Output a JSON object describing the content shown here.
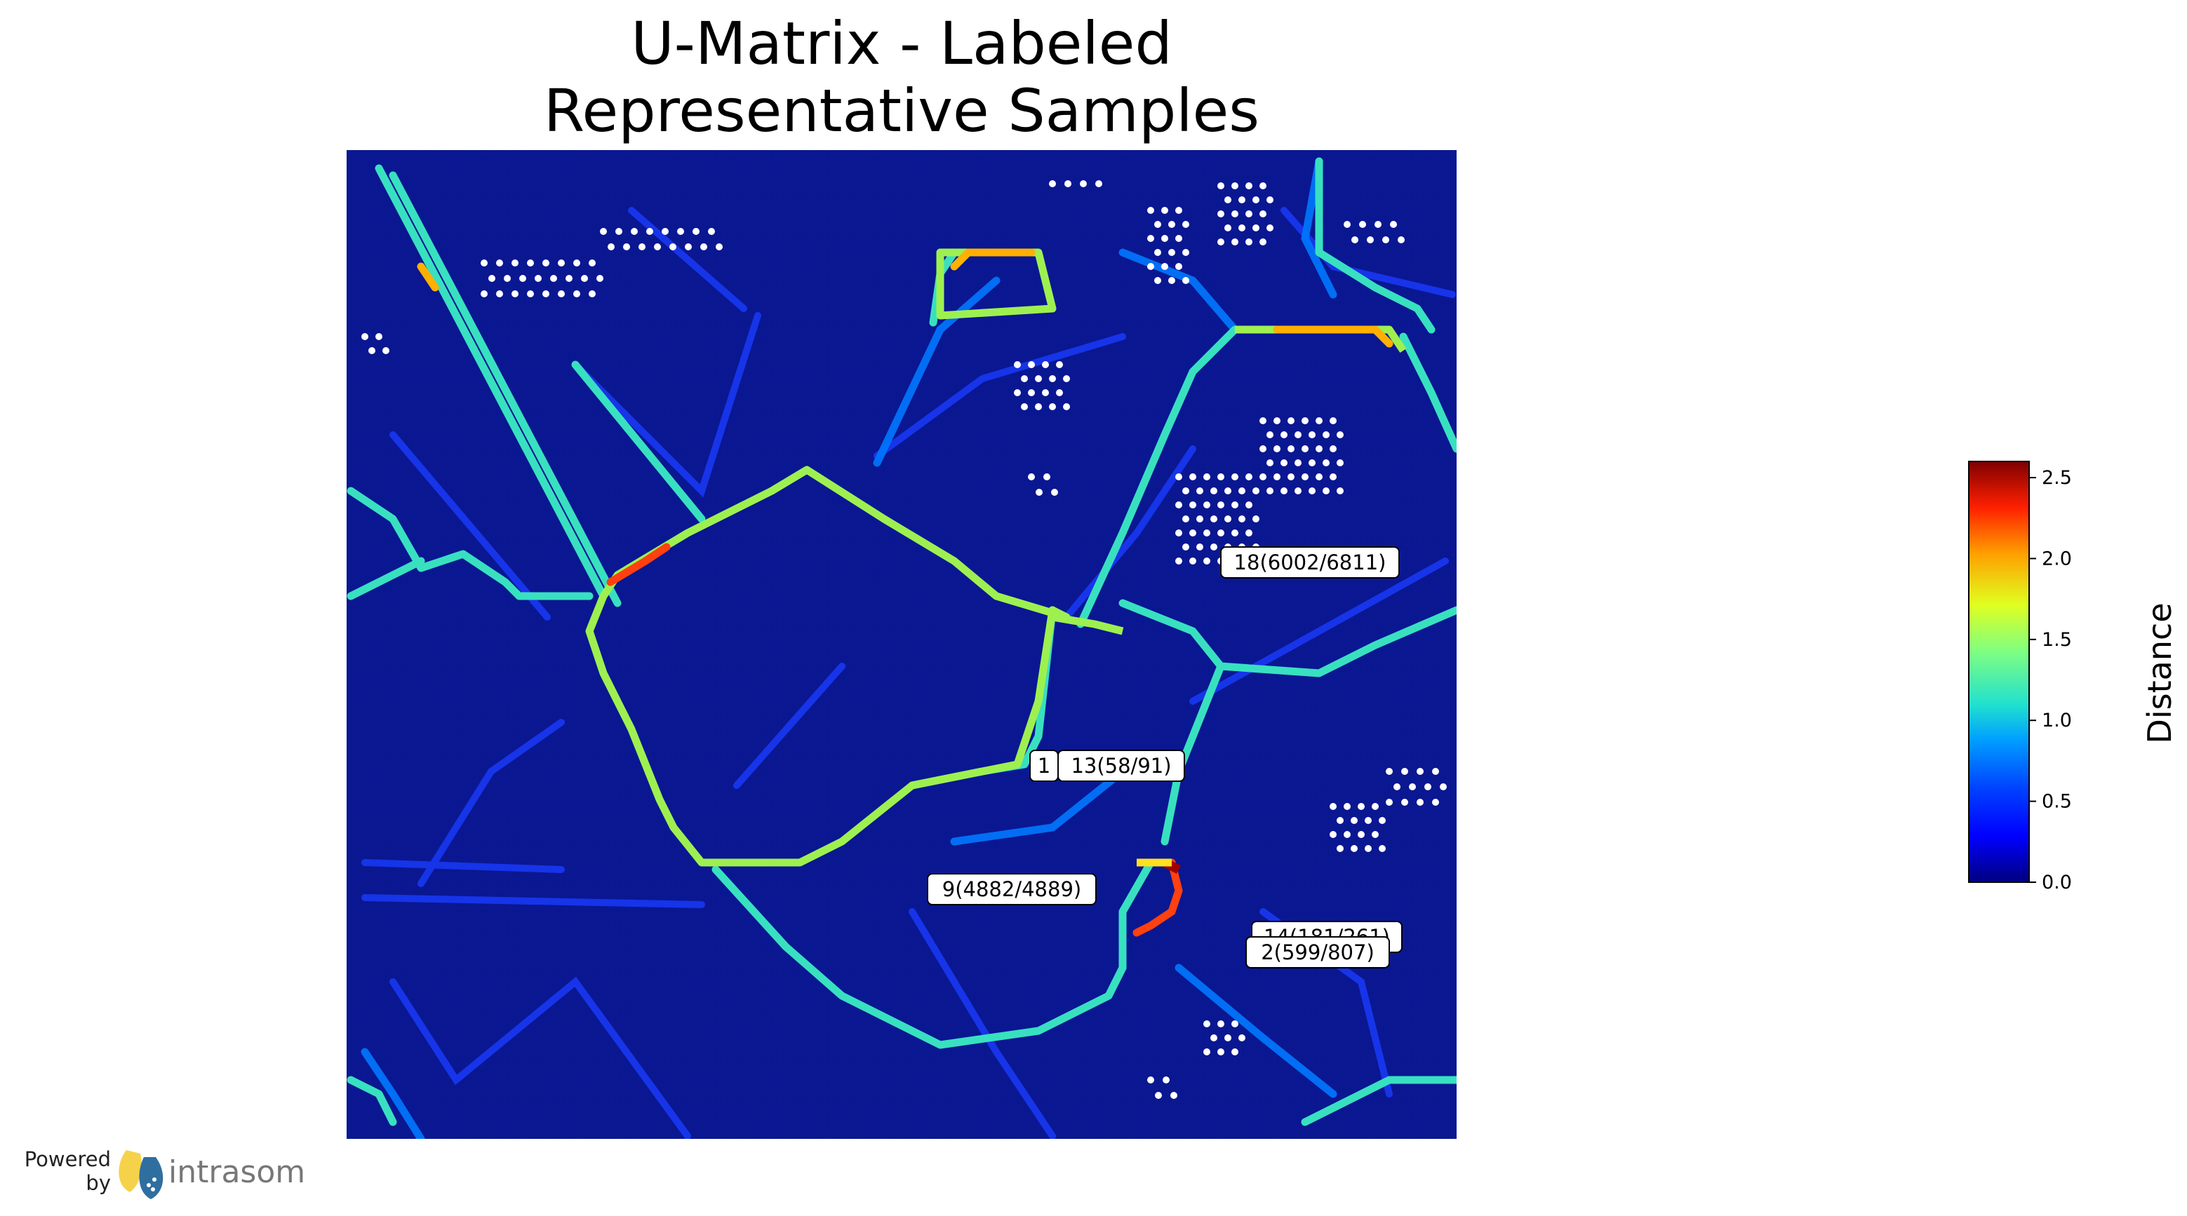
{
  "chart_data": {
    "type": "heatmap",
    "title_lines": [
      "U-Matrix - Labeled",
      "Representative Samples"
    ],
    "colorbar": {
      "label": "Distance",
      "min": 0.0,
      "max": 2.6,
      "ticks": [
        "0.0",
        "0.5",
        "1.0",
        "1.5",
        "2.0",
        "2.5"
      ],
      "tick_values": [
        0.0,
        0.5,
        1.0,
        1.5,
        2.0,
        2.5
      ],
      "colormap": "jet"
    },
    "annotations": [
      {
        "label": "18(6002/6811)"
      },
      {
        "label": "1"
      },
      {
        "label": "13(58/91)"
      },
      {
        "label": "9(4882/4889)"
      },
      {
        "label": "14(181/261)"
      },
      {
        "label": "2(599/807)"
      }
    ],
    "grid": "hexagonal"
  },
  "branding": {
    "powered_line1": "Powered",
    "powered_line2": "by",
    "logo_text": "intrasom"
  }
}
